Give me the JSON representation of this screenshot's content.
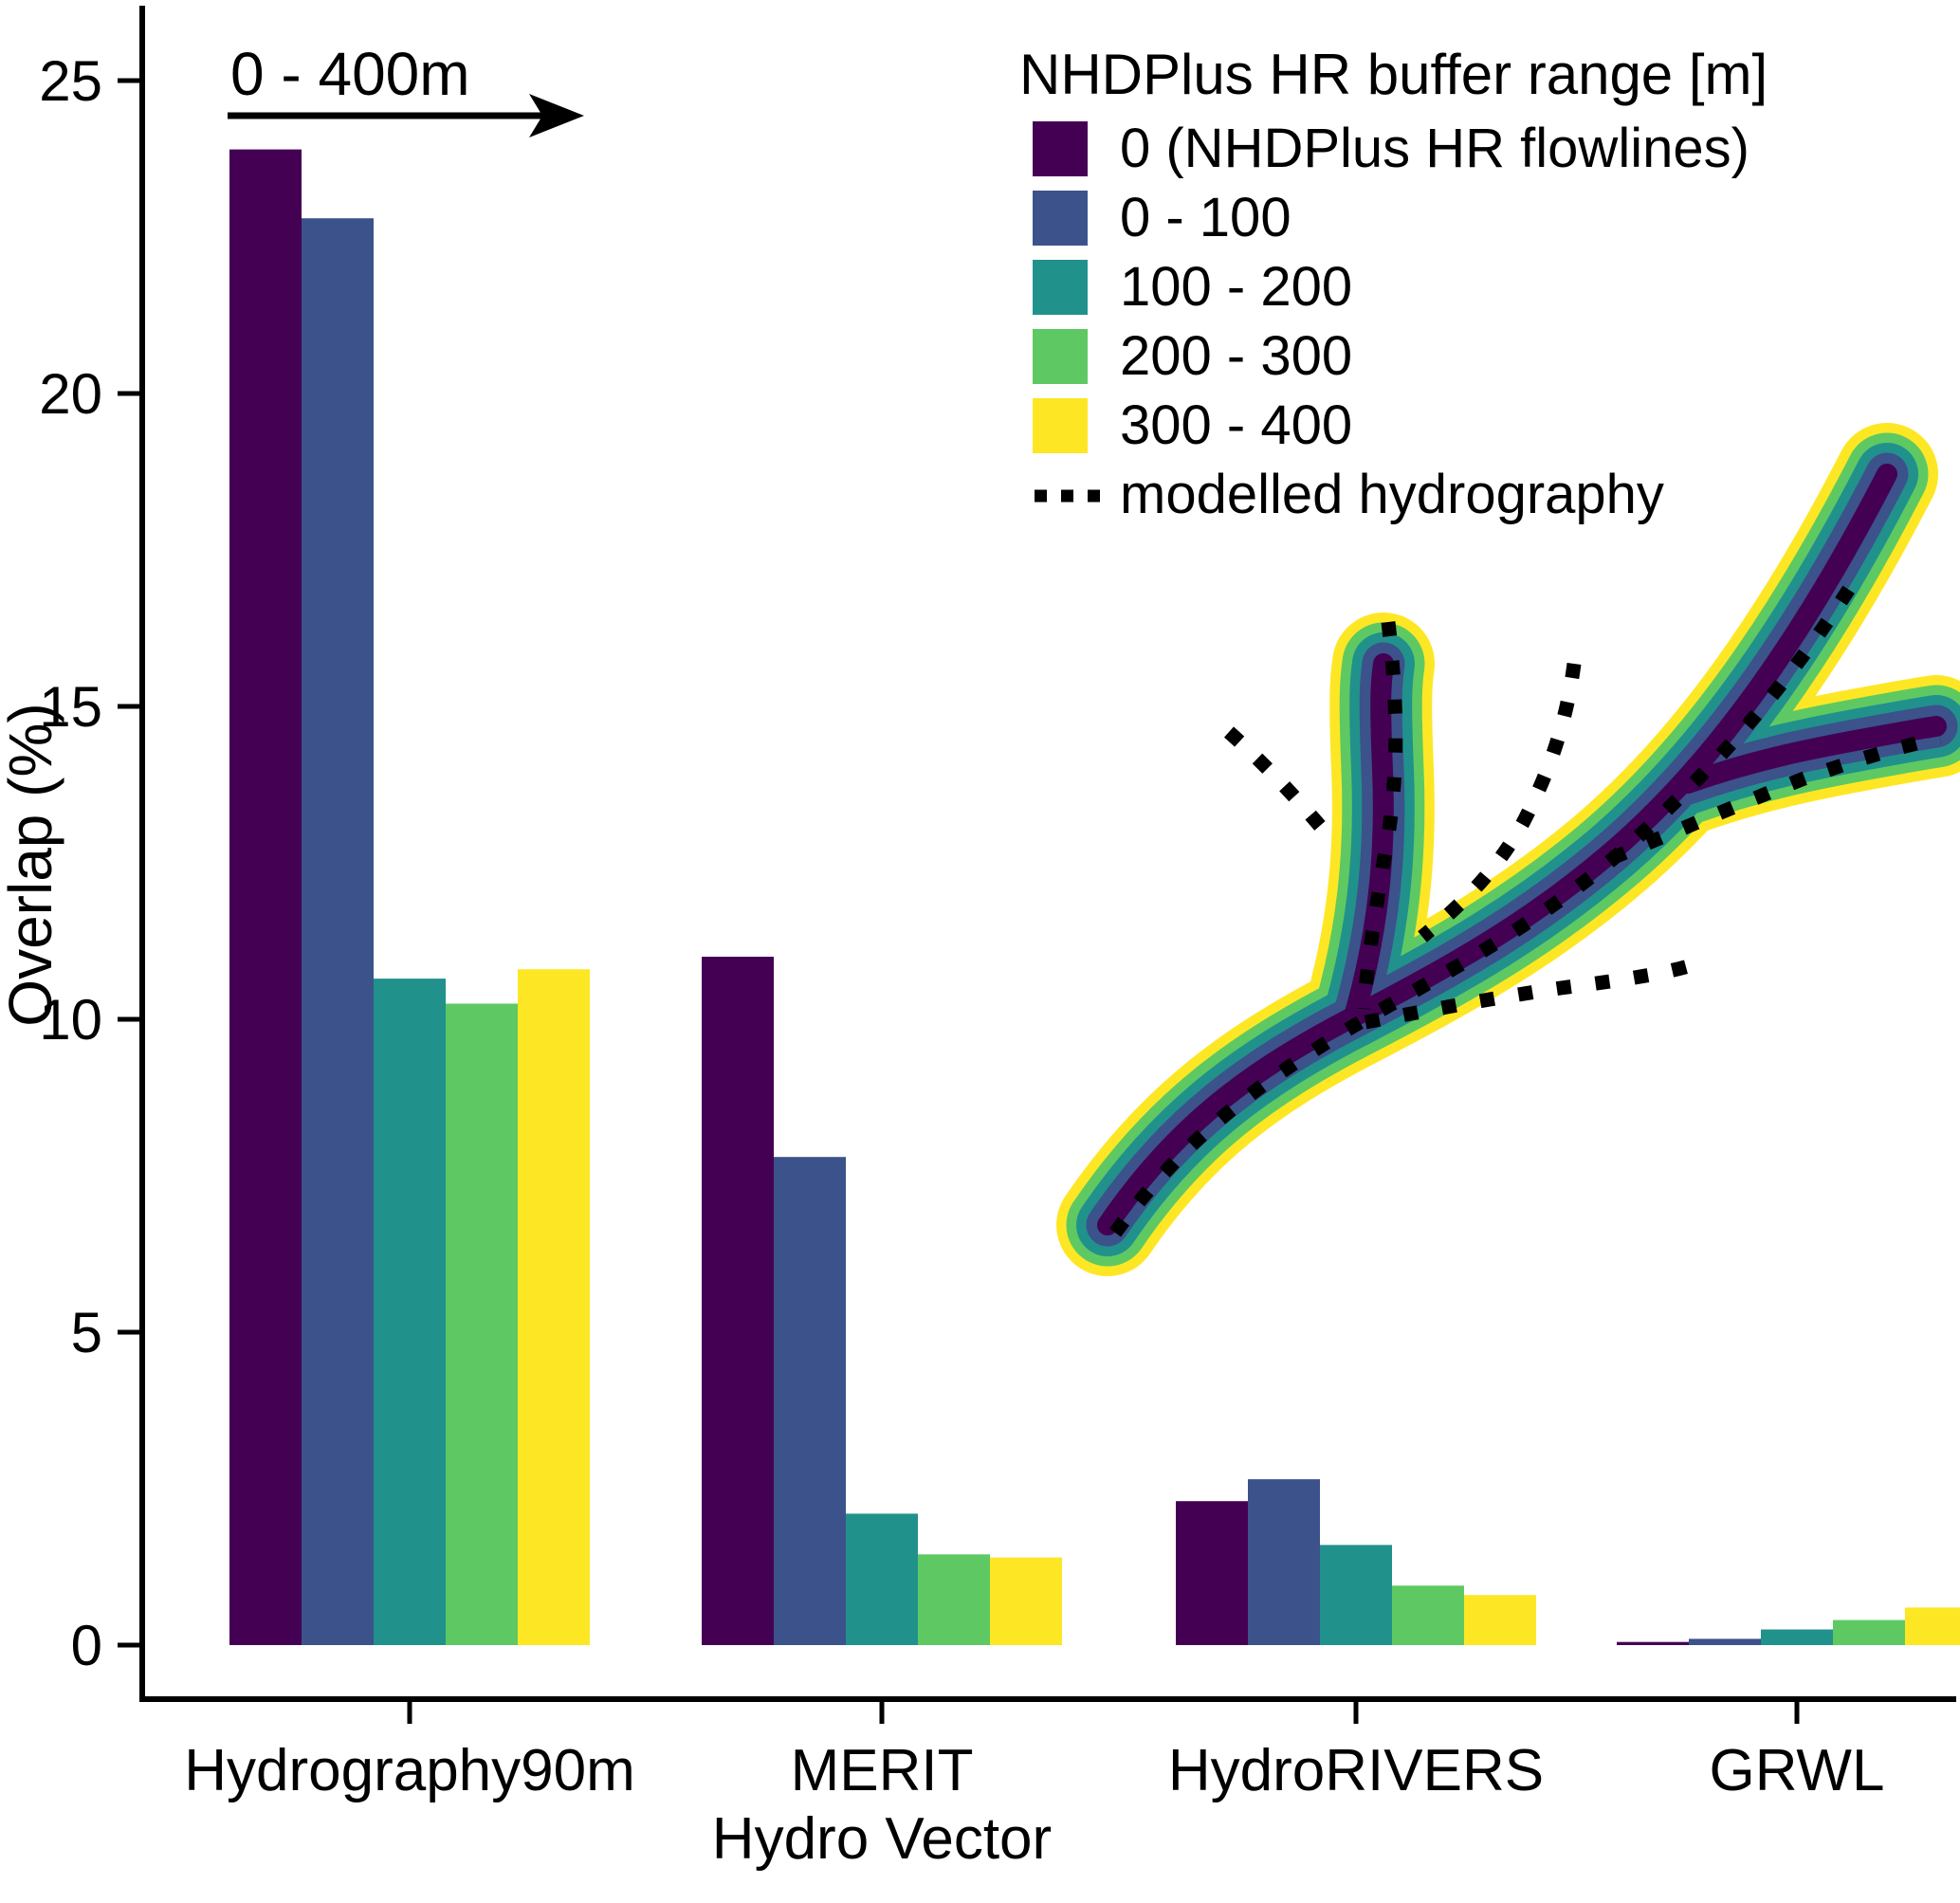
{
  "annotation": {
    "text": "0 - 400m"
  },
  "legend": {
    "title": "NHDPlus HR buffer range [m]",
    "items": [
      {
        "swatch": "square",
        "color": "#440154",
        "label": "0 (NHDPlus HR flowlines)"
      },
      {
        "swatch": "square",
        "color": "#3b528b",
        "label": "0 - 100"
      },
      {
        "swatch": "square",
        "color": "#21918c",
        "label": "100 - 200"
      },
      {
        "swatch": "square",
        "color": "#5ec962",
        "label": "200 - 300"
      },
      {
        "swatch": "square",
        "color": "#fde725",
        "label": "300 - 400"
      },
      {
        "swatch": "dotted-line",
        "color": "#000000",
        "label": "modelled hydrography"
      }
    ]
  },
  "chart_data": {
    "type": "bar",
    "title": "",
    "xlabel": "",
    "ylabel": "Overlap (%)",
    "ylim": [
      0,
      25
    ],
    "yticks": [
      0,
      5,
      10,
      15,
      20,
      25
    ],
    "grid": false,
    "legend_position": "top-right",
    "categories": [
      "Hydrography90m",
      "MERIT Hydro Vector",
      "HydroRIVERS",
      "GRWL"
    ],
    "category_label_lines": [
      [
        "Hydrography90m"
      ],
      [
        "MERIT",
        "Hydro Vector"
      ],
      [
        "HydroRIVERS"
      ],
      [
        "GRWL"
      ]
    ],
    "series": [
      {
        "name": "0 (NHDPlus HR flowlines)",
        "color": "#440154",
        "values": [
          23.9,
          11.0,
          2.3,
          0.05
        ]
      },
      {
        "name": "0 - 100",
        "color": "#3b528b",
        "values": [
          22.8,
          7.8,
          2.65,
          0.1
        ]
      },
      {
        "name": "100 - 200",
        "color": "#21918c",
        "values": [
          10.65,
          2.1,
          1.6,
          0.25
        ]
      },
      {
        "name": "200 - 300",
        "color": "#5ec962",
        "values": [
          10.25,
          1.45,
          0.95,
          0.4
        ]
      },
      {
        "name": "300 - 400",
        "color": "#fde725",
        "values": [
          10.8,
          1.4,
          0.8,
          0.6
        ]
      }
    ],
    "inset": {
      "description": "river network drawn with nested buffer rings and dotted modelled hydrography lines",
      "ring_colors_outer_to_inner": [
        "#fde725",
        "#5ec962",
        "#21918c",
        "#3b528b",
        "#440154"
      ],
      "dotted_line_color": "#000000"
    }
  },
  "axis": {
    "color": "#000000"
  }
}
